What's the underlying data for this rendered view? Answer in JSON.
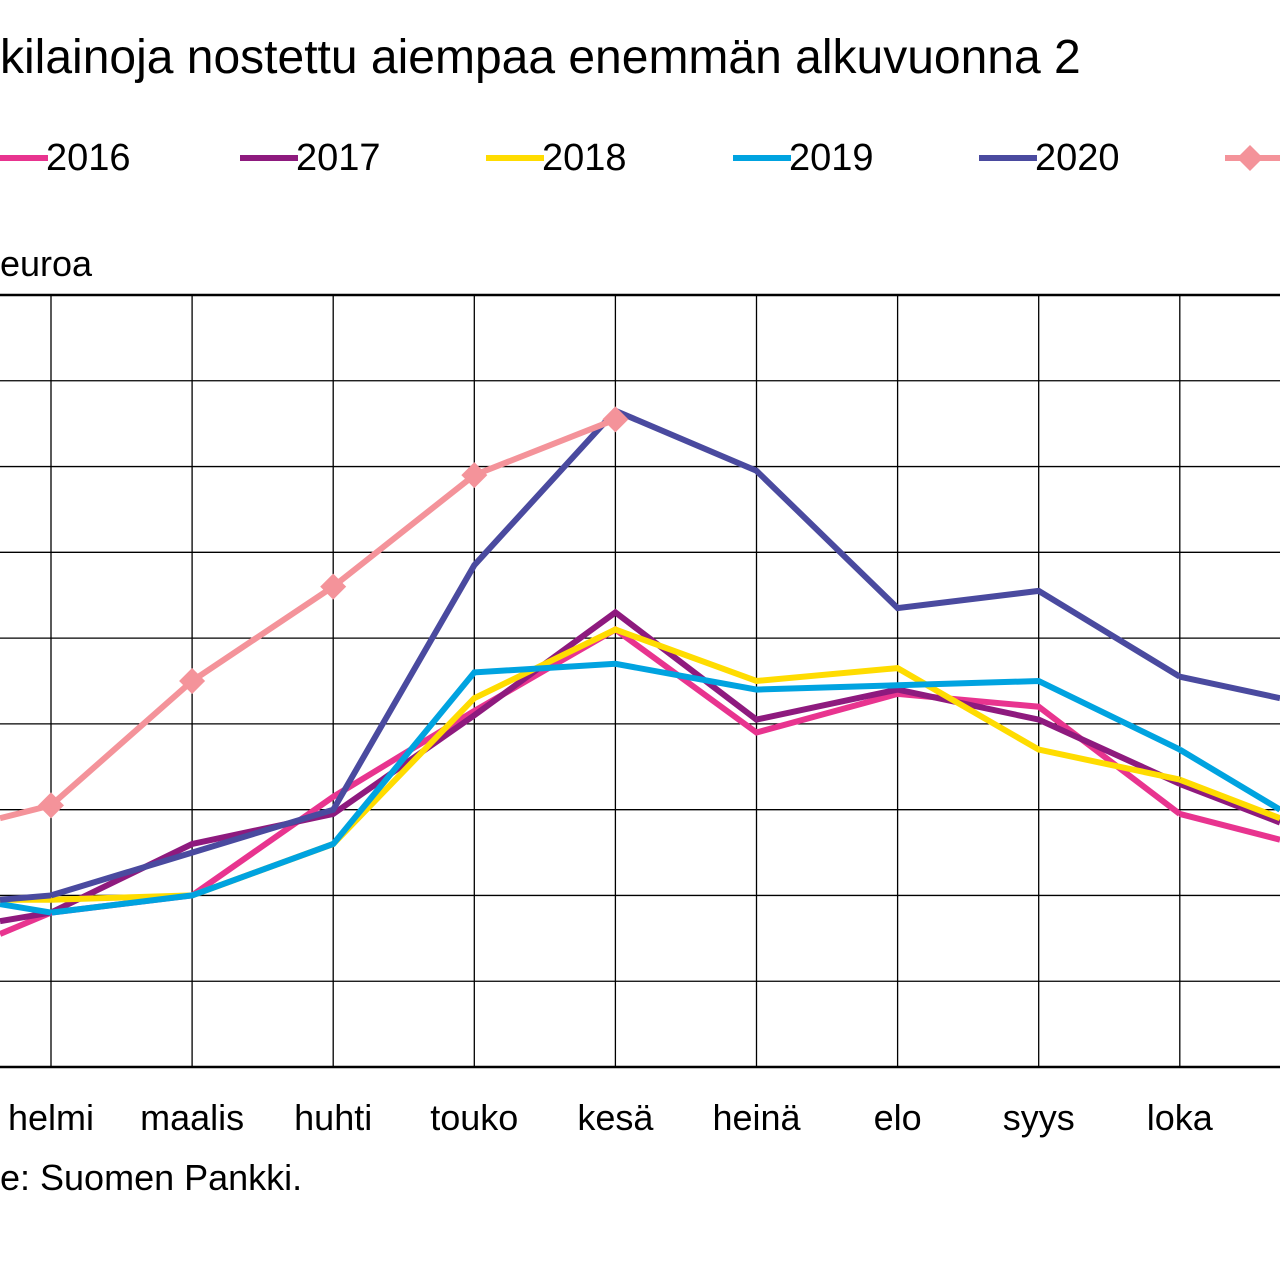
{
  "title": "kilainoja nostettu aiempaa enemmän alkuvuonna 2",
  "unit_label": "euroa",
  "source": "e: Suomen Pankki.",
  "chart_data": {
    "type": "line",
    "categories": [
      "helmi",
      "maalis",
      "huhti",
      "touko",
      "kesä",
      "heinä",
      "elo",
      "syys",
      "loka"
    ],
    "x_extra_visible": "m",
    "ylim": [
      0,
      9
    ],
    "grid": true,
    "legend_placement": "top",
    "series": [
      {
        "name": "2016",
        "color": "#e8348f",
        "marker": "none",
        "values": [
          1.8,
          2.0,
          3.15,
          4.15,
          5.1,
          3.9,
          4.35,
          4.2,
          2.95
        ]
      },
      {
        "name": "2017",
        "color": "#8e1a7e",
        "marker": "none",
        "values": [
          1.8,
          2.6,
          2.95,
          4.1,
          5.3,
          4.05,
          4.4,
          4.05,
          3.3
        ]
      },
      {
        "name": "2018",
        "color": "#ffdc00",
        "marker": "none",
        "values": [
          1.95,
          2.0,
          2.6,
          4.3,
          5.1,
          4.5,
          4.65,
          3.7,
          3.35
        ]
      },
      {
        "name": "2019",
        "color": "#00a3e0",
        "marker": "none",
        "values": [
          1.8,
          2.0,
          2.6,
          4.6,
          4.7,
          4.4,
          4.45,
          4.5,
          3.7
        ]
      },
      {
        "name": "2020",
        "color": "#4a4a9f",
        "marker": "none",
        "values": [
          2.0,
          2.5,
          3.0,
          5.85,
          7.65,
          6.95,
          5.35,
          5.55,
          4.55
        ]
      },
      {
        "name": "",
        "color": "#f4939a",
        "marker": "diamond",
        "values": [
          3.05,
          4.5,
          5.6,
          6.9,
          7.55,
          null,
          null,
          null,
          null
        ]
      }
    ]
  }
}
